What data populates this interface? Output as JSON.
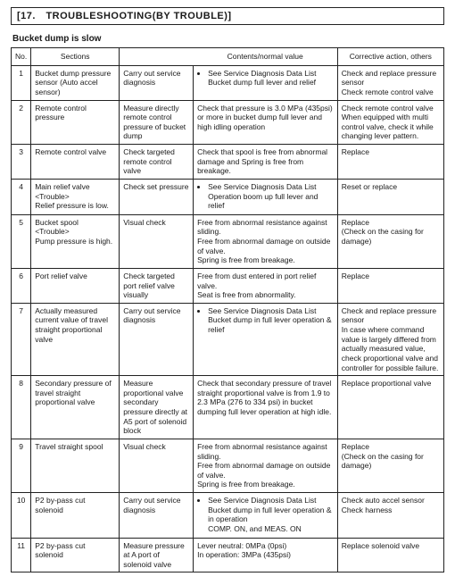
{
  "heading": "[17. TROUBLESHOOTING(BY TROUBLE)]",
  "subtitle": "Bucket dump is slow",
  "columns": [
    "No.",
    "Sections",
    "",
    "Contents/normal value",
    "Corrective action, others"
  ],
  "rows": [
    {
      "no": "1",
      "section": "Bucket dump pressure sensor (Auto accel sensor)",
      "check": "Carry out service diagnosis",
      "contents_list": [
        "See Service Diagnosis Data List Bucket dump full lever and relief"
      ],
      "corrective": "Check and replace pressure sensor\nCheck remote control valve"
    },
    {
      "no": "2",
      "section": "Remote control pressure",
      "check": "Measure directly remote control pressure of bucket dump",
      "contents_text": "Check that pressure is 3.0 MPa (435psi) or more in bucket dump full lever and high idling operation",
      "corrective": "Check remote control valve\nWhen equipped with multi control valve, check it while changing lever pattern."
    },
    {
      "no": "3",
      "section": "Remote control valve",
      "check": "Check targeted remote control valve",
      "contents_text": "Check that spool is free from abnormal damage and Spring is free from breakage.",
      "corrective": "Replace"
    },
    {
      "no": "4",
      "section": "Main relief valve\n<Trouble>\nRelief pressure is low.",
      "check": "Check set pressure",
      "contents_list": [
        "See Service Diagnosis Data List Operation boom up full lever and relief"
      ],
      "corrective": "Reset or replace"
    },
    {
      "no": "5",
      "section": "Bucket spool\n<Trouble>\nPump pressure is high.",
      "check": "Visual check",
      "contents_text": "Free from abnormal resistance against sliding.\nFree from abnormal damage on outside of valve.\nSpring is free from breakage.",
      "corrective": "Replace\n(Check on the casing for damage)"
    },
    {
      "no": "6",
      "section": "Port relief valve",
      "check": "Check targeted port relief valve visually",
      "contents_text": "Free from dust entered in port relief valve.\nSeat is free from abnormality.",
      "corrective": "Replace"
    },
    {
      "no": "7",
      "section": "Actually measured current value of travel straight proportional valve",
      "check": "Carry out service diagnosis",
      "contents_list": [
        "See Service Diagnosis Data List Bucket dump in full lever operation & relief"
      ],
      "corrective": "Check and replace pressure sensor\nIn case where command value is largely differed from actually measured value, check proportional valve and controller for possible failure."
    },
    {
      "no": "8",
      "section": "Secondary pressure of travel straight proportional valve",
      "check": "Measure proportional valve secondary pressure directly at A5 port of solenoid block",
      "contents_text": "Check that secondary pressure of travel straight proportional valve is from 1.9 to 2.3 MPa (276 to 334 psi) in bucket dumping full lever operation at high idle.",
      "corrective": "Replace proportional valve"
    },
    {
      "no": "9",
      "section": "Travel straight spool",
      "check": "Visual check",
      "contents_text": "Free from abnormal resistance against sliding.\nFree from abnormal damage on outside of valve.\nSpring is free from breakage.",
      "corrective": "Replace\n(Check on the casing for damage)"
    },
    {
      "no": "10",
      "section": "P2 by-pass cut solenoid",
      "check": "Carry out service diagnosis",
      "contents_list": [
        "See Service Diagnosis Data List Bucket dump in full lever operation & in operation\nCOMP. ON, and MEAS. ON"
      ],
      "corrective": "Check auto accel sensor\nCheck harness"
    },
    {
      "no": "11",
      "section": "P2 by-pass cut solenoid",
      "check": "Measure pressure at A port of solenoid valve",
      "contents_text": "Lever neutral: 0MPa (0psi)\nIn operation: 3MPa (435psi)",
      "corrective": "Replace solenoid valve"
    }
  ]
}
